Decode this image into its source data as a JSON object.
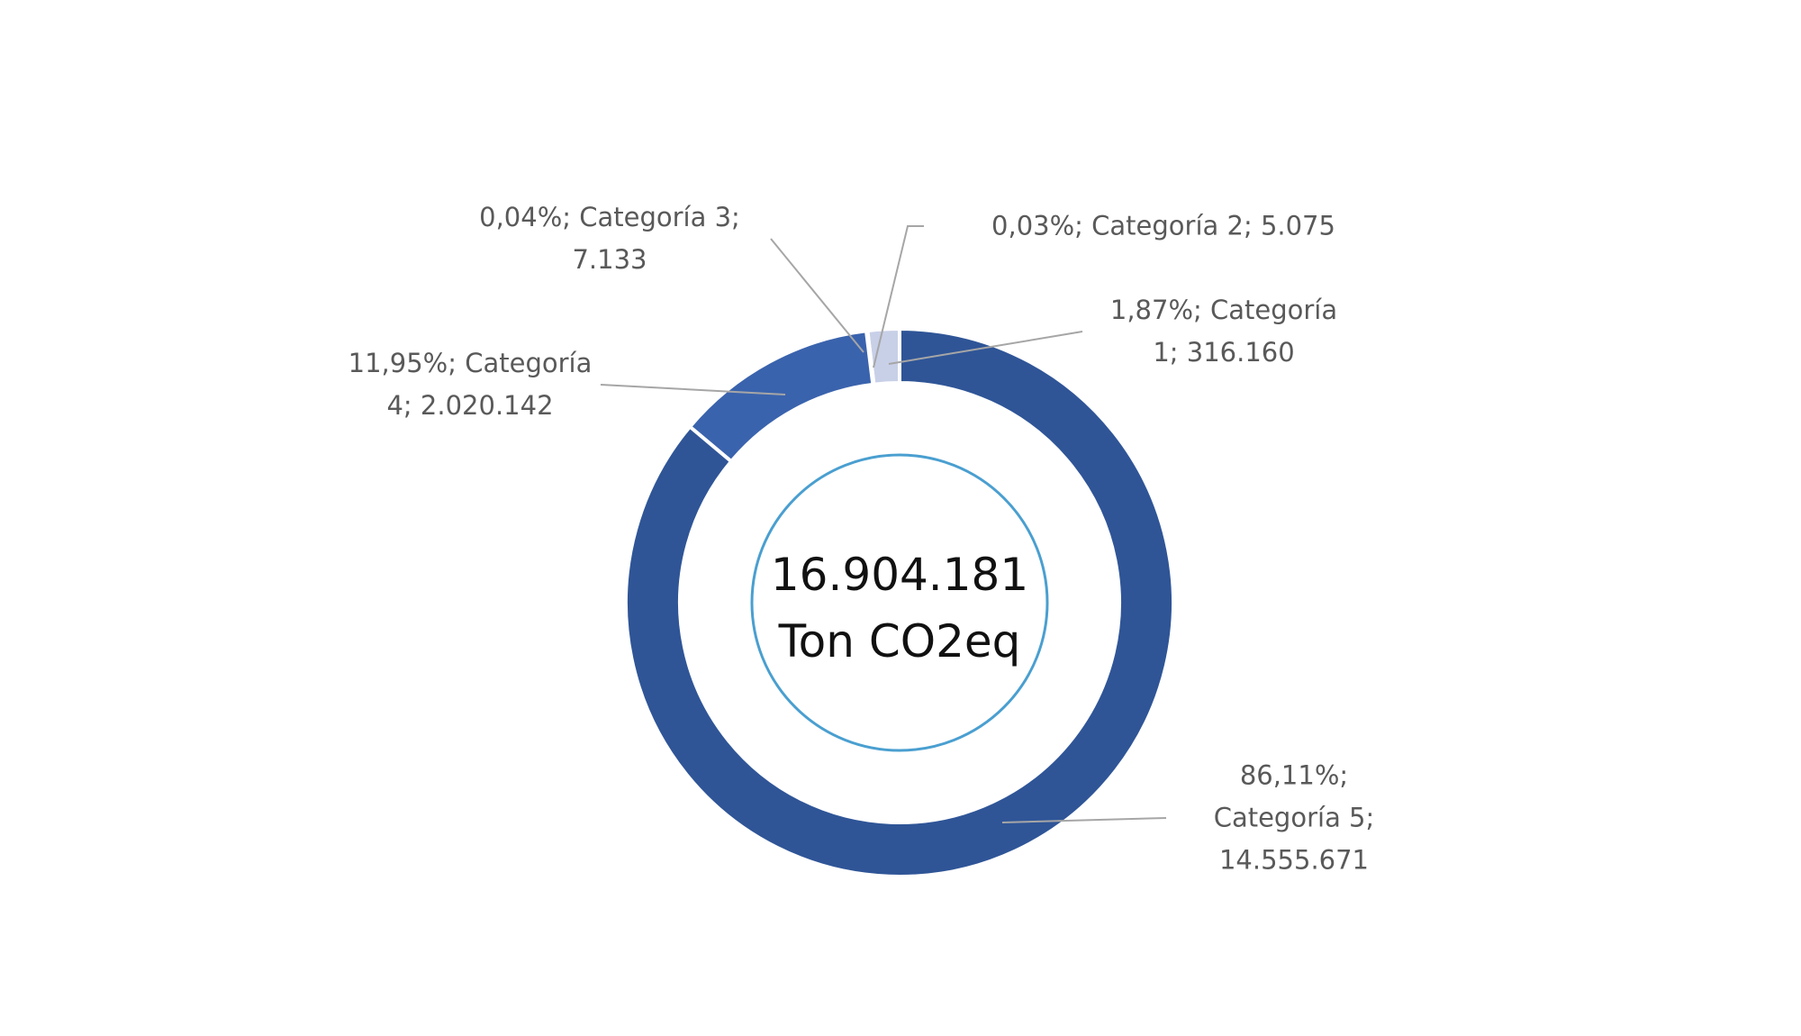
{
  "chart_data": {
    "type": "donut",
    "categories": [
      "Categoría 5",
      "Categoría 4",
      "Categoría 3",
      "Categoría 2",
      "Categoría 1"
    ],
    "values": [
      14555671,
      2020142,
      7133,
      5075,
      316160
    ],
    "value_labels": [
      "86,11%; Categoría 5; 14.555.671",
      "11,95%; Categoría 4; 2.020.142",
      "0,04%; Categoría 3; 7.133",
      "0,03%; Categoría 2; 5.075",
      "1,87%; Categoría 1; 316.160"
    ],
    "colors": [
      "#2f5597",
      "#3a63ad",
      "#8fa8d8",
      "#b4c4e6",
      "#c8d0e8"
    ],
    "center_label": "16.904.181",
    "center_unit": "Ton CO2eq"
  }
}
